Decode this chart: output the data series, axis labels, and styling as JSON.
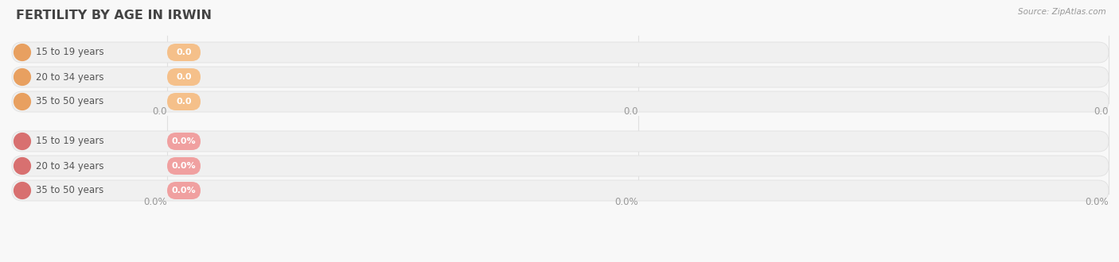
{
  "title": "FERTILITY BY AGE IN IRWIN",
  "source": "Source: ZipAtlas.com",
  "title_fontsize": 11.5,
  "title_color": "#444444",
  "background_color": "#f8f8f8",
  "group1": {
    "categories": [
      "15 to 19 years",
      "20 to 34 years",
      "35 to 50 years"
    ],
    "values": [
      "0.0",
      "0.0",
      "0.0"
    ],
    "bar_bg_color": "#f0f0f0",
    "bar_edge_color": "#e0e0e0",
    "badge_color": "#f5c08a",
    "circle_color": "#e8a060",
    "label_color": "#555555",
    "value_text_color": "#ffffff",
    "axis_ticks": [
      "0.0",
      "0.0",
      "0.0"
    ]
  },
  "group2": {
    "categories": [
      "15 to 19 years",
      "20 to 34 years",
      "35 to 50 years"
    ],
    "values": [
      "0.0%",
      "0.0%",
      "0.0%"
    ],
    "bar_bg_color": "#f0f0f0",
    "bar_edge_color": "#e0e0e0",
    "badge_color": "#f0a0a0",
    "circle_color": "#d87070",
    "label_color": "#555555",
    "value_text_color": "#ffffff",
    "axis_ticks": [
      "0.0%",
      "0.0%",
      "0.0%"
    ]
  },
  "grid_color": "#e0e0e0",
  "axis_tick_color": "#999999",
  "source_color": "#999999"
}
